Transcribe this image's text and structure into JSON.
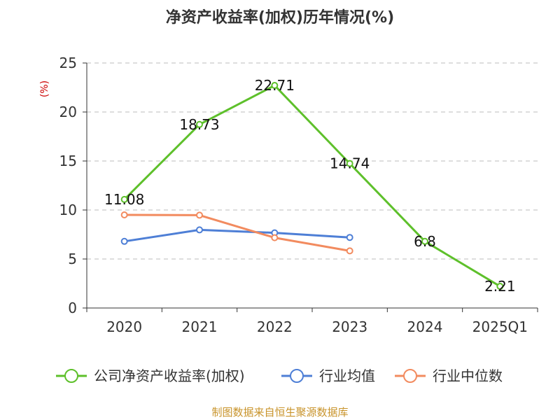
{
  "chart_data": {
    "type": "line",
    "title": "净资产收益率(加权)历年情况(%)",
    "ylabel": "(%)",
    "categories": [
      "2020",
      "2021",
      "2022",
      "2023",
      "2024",
      "2025Q1"
    ],
    "ylim": [
      0,
      25
    ],
    "yticks": [
      0,
      5,
      10,
      15,
      20,
      25
    ],
    "grid": true,
    "legend_position": "bottom",
    "series": [
      {
        "name": "公司净资产收益率(加权)",
        "color": "#5ec02b",
        "values": [
          11.08,
          18.73,
          22.71,
          14.74,
          6.8,
          2.21
        ],
        "labels": [
          "11.08",
          "18.73",
          "22.71",
          "14.74",
          "6.8",
          "2.21"
        ]
      },
      {
        "name": "行业均值",
        "color": "#4e7fd6",
        "values": [
          6.8,
          7.97,
          7.67,
          7.2,
          null,
          null
        ]
      },
      {
        "name": "行业中位数",
        "color": "#f28b5f",
        "values": [
          9.5,
          9.47,
          7.17,
          5.83,
          null,
          null
        ]
      }
    ],
    "footer": "制图数据来自恒生聚源数据库"
  }
}
